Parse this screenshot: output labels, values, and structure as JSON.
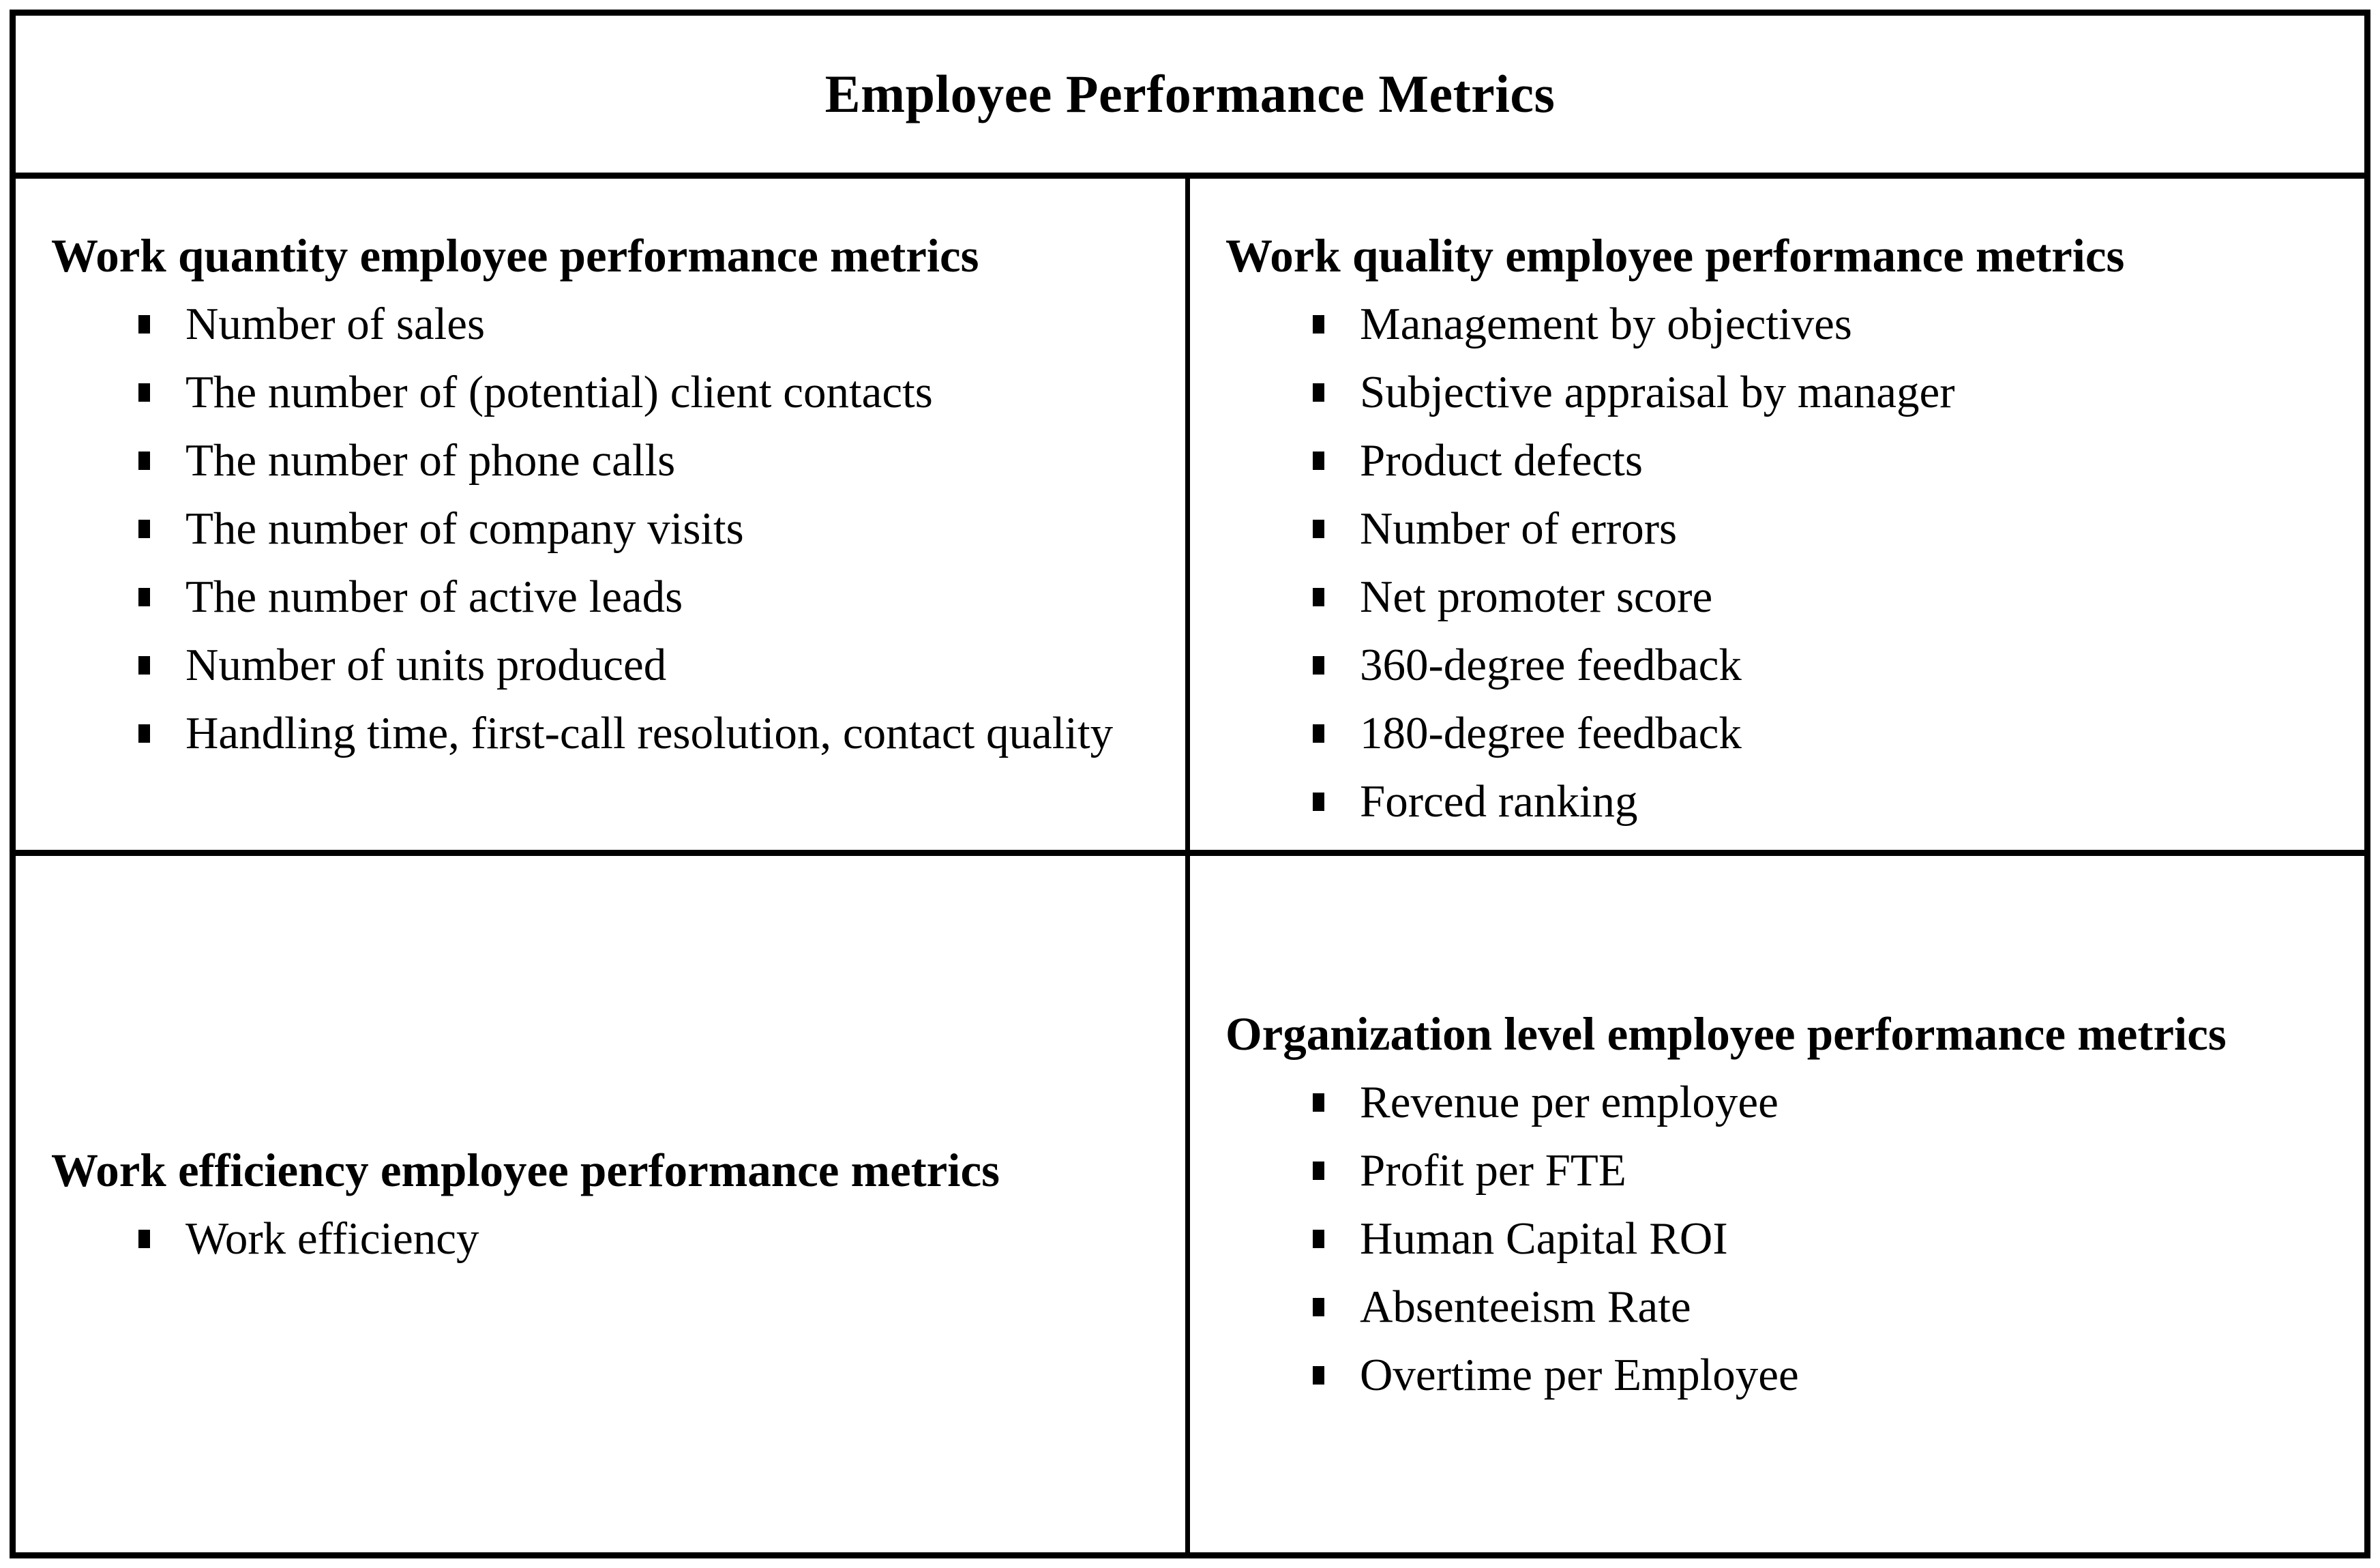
{
  "title": "Employee Performance Metrics",
  "colors": {
    "text": "#000000",
    "border": "#000000",
    "background": "#ffffff"
  },
  "quadrants": [
    {
      "heading": "Work quantity employee performance metrics",
      "items": [
        "Number of sales",
        "The number of (potential) client contacts",
        "The number of phone calls",
        "The number of company visits",
        "The number of active leads",
        "Number of units produced",
        "Handling time, first-call resolution, contact quality"
      ]
    },
    {
      "heading": "Work quality employee performance metrics",
      "items": [
        "Management by objectives",
        "Subjective appraisal by manager",
        "Product defects",
        "Number of errors",
        "Net promoter score",
        "360-degree feedback",
        "180-degree feedback",
        "Forced ranking"
      ]
    },
    {
      "heading": "Work efficiency employee performance metrics",
      "items": [
        "Work efficiency"
      ]
    },
    {
      "heading": "Organization level employee performance metrics",
      "items": [
        "Revenue per employee",
        "Profit per FTE",
        "Human Capital ROI",
        "Absenteeism Rate",
        "Overtime per Employee"
      ]
    }
  ]
}
